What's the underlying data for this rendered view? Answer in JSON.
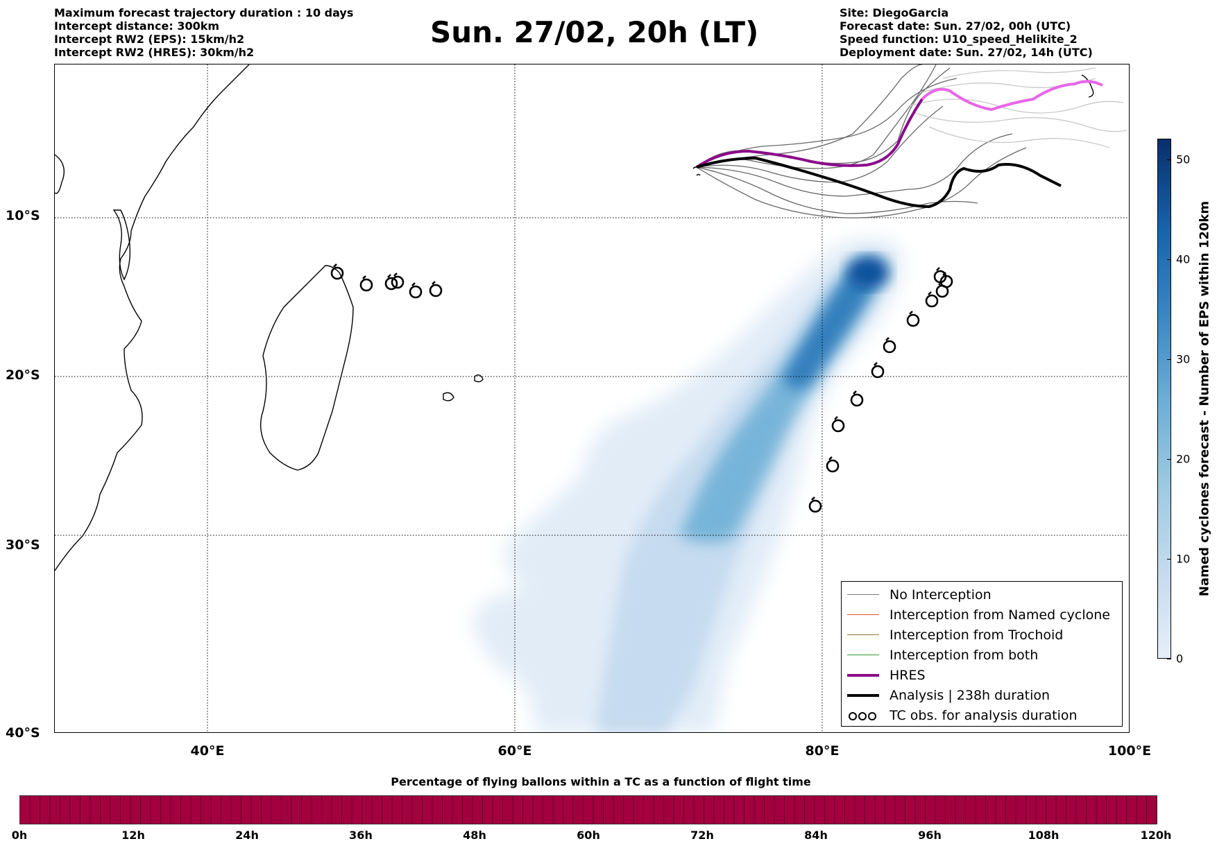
{
  "header_left": [
    "Maximum forecast trajectory duration : 10 days",
    "Intercept distance: 300km",
    "Intercept RW2 (EPS):  15km/h2",
    "Intercept RW2 (HRES): 30km/h2"
  ],
  "title": "Sun. 27/02, 20h (LT)",
  "header_right": [
    "Site: DiegoGarcia",
    "Forecast date: Sun. 27/02, 00h (UTC)",
    "Speed function: U10_speed_Helikite_2",
    "Deployment date: Sun. 27/02, 14h (UTC)"
  ],
  "lat_labels": [
    "10°S",
    "20°S",
    "30°S",
    "40°S"
  ],
  "lon_labels": [
    "40°E",
    "60°E",
    "80°E",
    "100°E"
  ],
  "legend": [
    {
      "label": "No Interception",
      "color": "#777777"
    },
    {
      "label": "Interception from Named cyclone",
      "color": "#e8502a"
    },
    {
      "label": "Interception from Trochoid",
      "color": "#8b7a1e"
    },
    {
      "label": "Interception from both",
      "color": "#2a9a2a"
    },
    {
      "label": "HRES",
      "color": "#8b0a8b"
    },
    {
      "label": "Analysis | 238h duration",
      "color": "#000000"
    },
    {
      "label": "TC obs. for analysis duration",
      "color": "#000000",
      "symbol": "cyclone-symbols"
    }
  ],
  "colorbar": {
    "label": "Named cyclones forecast - Number of EPS within 120km",
    "ticks": [
      "0",
      "10",
      "20",
      "30",
      "40",
      "50"
    ]
  },
  "percentage_bar": {
    "title": "Percentage of flying ballons within a TC as a function of flight time",
    "color": "#a3003e",
    "ticks": [
      "0h",
      "12h",
      "24h",
      "36h",
      "48h",
      "60h",
      "72h",
      "84h",
      "96h",
      "108h",
      "120h"
    ]
  }
}
